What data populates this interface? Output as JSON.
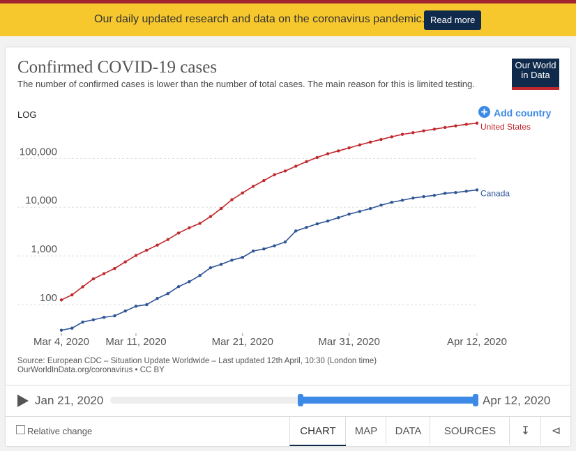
{
  "banner": {
    "text": "Our daily updated research and data on the coronavirus pandemic.",
    "button": "Read more"
  },
  "logo": [
    "Our World",
    "in Data"
  ],
  "chart_data": {
    "type": "line",
    "title": "Confirmed COVID-19 cases",
    "subtitle": "The number of confirmed cases is lower than the number of total cases. The main reason for this is limited testing.",
    "scale_toggle": "LOG",
    "add_country": "Add country",
    "log_scale": true,
    "grid": true,
    "categories": [
      "Mar 4, 2020",
      null,
      null,
      null,
      null,
      null,
      null,
      "Mar 11, 2020",
      null,
      null,
      null,
      null,
      null,
      null,
      null,
      null,
      null,
      "Mar 21, 2020",
      null,
      null,
      null,
      null,
      null,
      null,
      null,
      null,
      null,
      "Mar 31, 2020",
      null,
      null,
      null,
      null,
      null,
      null,
      null,
      null,
      null,
      null,
      null,
      "Apr 12, 2020"
    ],
    "series": [
      {
        "name": "United States",
        "color": "#c0282d",
        "values": [
          125,
          159,
          233,
          338,
          433,
          554,
          754,
          1025,
          1312,
          1663,
          2174,
          2951,
          3774,
          4661,
          6427,
          9415,
          14250,
          19624,
          26747,
          35206,
          46442,
          55231,
          69194,
          85991,
          104686,
          124665,
          143025,
          164620,
          189618,
          216721,
          245540,
          277965,
          312237,
          337635,
          368196,
          398809,
          432132,
          466033,
          501560,
          530006
        ]
      },
      {
        "name": "Canada",
        "color": "#2f5597",
        "values": [
          30,
          33,
          44,
          49,
          55,
          59,
          74,
          93,
          100,
          134,
          169,
          235,
          296,
          398,
          572,
          674,
          820,
          935,
          1260,
          1390,
          1620,
          1930,
          3250,
          3850,
          4550,
          5200,
          6100,
          7200,
          8200,
          9400,
          11000,
          12600,
          13900,
          15400,
          16500,
          17500,
          19300,
          20000,
          21300,
          22600
        ]
      }
    ],
    "ylim": [
      26,
      560000
    ],
    "yticks": [
      100,
      {
        "value": 1000,
        "label": "1,000"
      },
      {
        "value": 10000,
        "label": "10,000"
      },
      {
        "value": 100000,
        "label": "100,000"
      }
    ]
  },
  "source": [
    "Source: European CDC – Situation Update Worldwide – Last updated 12th April, 10:30 (London time)",
    "OurWorldInData.org/coronavirus • CC BY"
  ],
  "timeline": {
    "start": "Jan 21, 2020",
    "end": "Apr 12, 2020"
  },
  "relative_change": "Relative change",
  "tabs": [
    "CHART",
    "MAP",
    "DATA",
    "SOURCES"
  ]
}
